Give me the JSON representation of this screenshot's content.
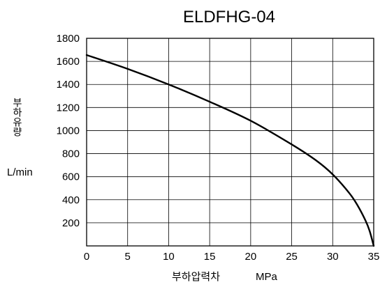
{
  "chart_data": {
    "type": "line",
    "title": "ELDFHG-04",
    "xlabel": "부하압력차",
    "xunit": "MPa",
    "ylabel": "부하유량",
    "yunit": "L/min",
    "xlim": [
      0,
      35
    ],
    "ylim": [
      0,
      1800
    ],
    "xticks": [
      0,
      5,
      10,
      15,
      20,
      25,
      30,
      35
    ],
    "yticks": [
      200,
      400,
      600,
      800,
      1000,
      1200,
      1400,
      1600,
      1800
    ],
    "grid": true,
    "series": [
      {
        "x": [
          0,
          5,
          10,
          15,
          20,
          25,
          28,
          30,
          32,
          33,
          34,
          34.5,
          35
        ],
        "y": [
          1655,
          1535,
          1400,
          1250,
          1085,
          880,
          740,
          620,
          460,
          355,
          220,
          130,
          0
        ]
      }
    ]
  }
}
